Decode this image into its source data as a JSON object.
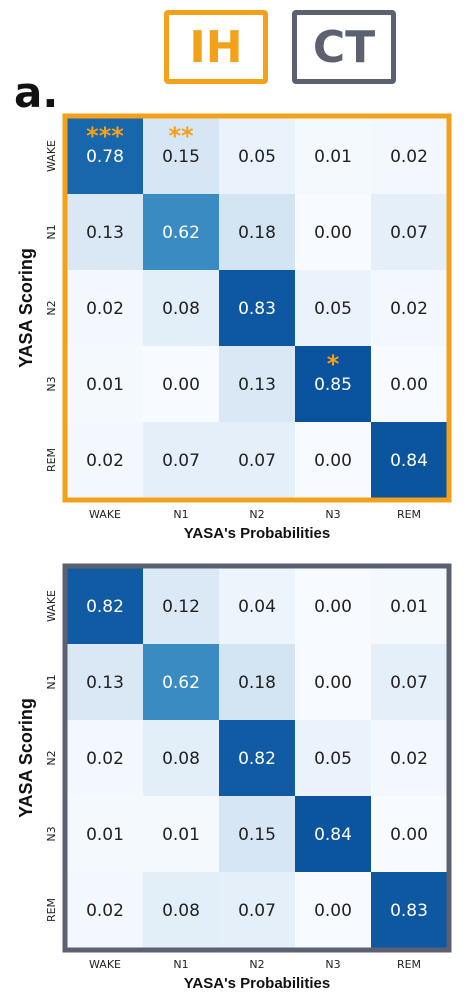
{
  "legend": {
    "ih": {
      "label": "IH",
      "color": "#f4a11a"
    },
    "ct": {
      "label": "CT",
      "color": "#5b6170"
    }
  },
  "panel_label": "a.",
  "chart_data": [
    {
      "type": "heatmap",
      "group": "IH",
      "border_color": "#f4a11a",
      "xlabel": "YASA's Probabilities",
      "ylabel": "YASA Scoring",
      "x_categories": [
        "WAKE",
        "N1",
        "N2",
        "N3",
        "REM"
      ],
      "y_categories": [
        "WAKE",
        "N1",
        "N2",
        "N3",
        "REM"
      ],
      "values": [
        [
          0.78,
          0.15,
          0.05,
          0.01,
          0.02
        ],
        [
          0.13,
          0.62,
          0.18,
          0.0,
          0.07
        ],
        [
          0.02,
          0.08,
          0.83,
          0.05,
          0.02
        ],
        [
          0.01,
          0.0,
          0.13,
          0.85,
          0.0
        ],
        [
          0.02,
          0.07,
          0.07,
          0.0,
          0.84
        ]
      ],
      "significance": [
        {
          "row": 0,
          "col": 0,
          "stars": "***"
        },
        {
          "row": 0,
          "col": 1,
          "stars": "**"
        },
        {
          "row": 3,
          "col": 3,
          "stars": "*"
        }
      ],
      "colormap": "Blues"
    },
    {
      "type": "heatmap",
      "group": "CT",
      "border_color": "#5b6170",
      "xlabel": "YASA's Probabilities",
      "ylabel": "YASA Scoring",
      "x_categories": [
        "WAKE",
        "N1",
        "N2",
        "N3",
        "REM"
      ],
      "y_categories": [
        "WAKE",
        "N1",
        "N2",
        "N3",
        "REM"
      ],
      "values": [
        [
          0.82,
          0.12,
          0.04,
          0.0,
          0.01
        ],
        [
          0.13,
          0.62,
          0.18,
          0.0,
          0.07
        ],
        [
          0.02,
          0.08,
          0.82,
          0.05,
          0.02
        ],
        [
          0.01,
          0.01,
          0.15,
          0.84,
          0.0
        ],
        [
          0.02,
          0.08,
          0.07,
          0.0,
          0.83
        ]
      ],
      "significance": [],
      "colormap": "Blues"
    }
  ]
}
